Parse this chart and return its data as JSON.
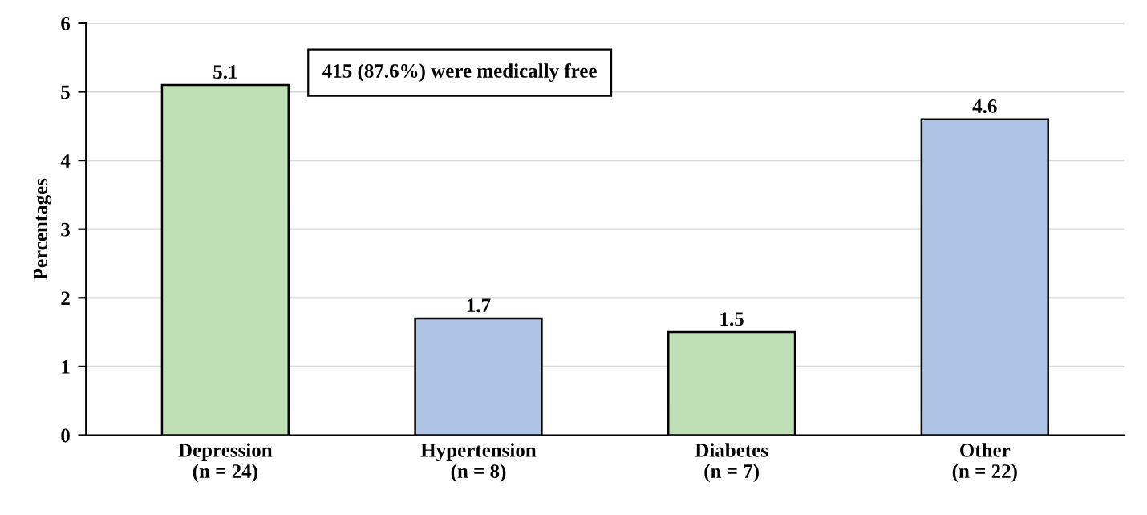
{
  "chart_data": {
    "type": "bar",
    "ylabel": "Percentages",
    "categories": [
      "Depression\n(n = 24)",
      "Hypertension\n(n = 8)",
      "Diabetes\n(n = 7)",
      "Other\n(n = 22)"
    ],
    "values": [
      5.1,
      1.7,
      1.5,
      4.6
    ],
    "colors": [
      "#bfe0b5",
      "#aec4e6",
      "#bfe0b5",
      "#aec4e6"
    ],
    "ylim": [
      0,
      6
    ],
    "yticks": [
      0,
      1,
      2,
      3,
      4,
      5,
      6
    ],
    "grid": "y",
    "data_labels": true,
    "annotations": [
      "415 (87.6%) were medically free"
    ]
  }
}
